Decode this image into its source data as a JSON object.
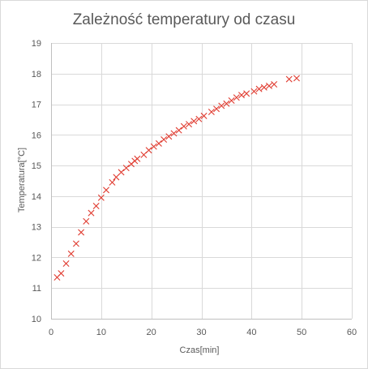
{
  "chart_data": {
    "type": "scatter",
    "title": "Zależność temperatury od czasu",
    "xlabel": "Czas[min]",
    "ylabel": "Temperatura[°C]",
    "xlim": [
      0,
      60
    ],
    "ylim": [
      10,
      19
    ],
    "xticks": [
      0,
      10,
      20,
      30,
      40,
      50,
      60
    ],
    "yticks": [
      10,
      11,
      12,
      13,
      14,
      15,
      16,
      17,
      18,
      19
    ],
    "grid": true,
    "legend": "none",
    "marker": "x",
    "marker_color": "#e03c31",
    "series": [
      {
        "x": [
          1.2,
          2.0,
          3.0,
          4.0,
          5.0,
          6.0,
          7.0,
          8.0,
          9.0,
          10.0,
          11.0,
          12.2,
          13.0,
          14.0,
          15.0,
          16.0,
          16.7,
          17.2,
          18.5,
          19.5,
          20.5,
          21.5,
          22.5,
          23.5,
          24.5,
          25.5,
          26.5,
          27.5,
          28.5,
          29.5,
          30.5,
          32.0,
          33.0,
          34.0,
          35.0,
          36.0,
          37.0,
          38.0,
          39.0,
          40.5,
          41.5,
          42.5,
          43.5,
          44.5,
          47.5,
          49.0
        ],
        "y": [
          11.35,
          11.48,
          11.8,
          12.12,
          12.45,
          12.82,
          13.18,
          13.45,
          13.68,
          13.95,
          14.2,
          14.45,
          14.62,
          14.78,
          14.92,
          15.05,
          15.15,
          15.22,
          15.35,
          15.5,
          15.62,
          15.72,
          15.85,
          15.95,
          16.05,
          16.15,
          16.28,
          16.35,
          16.45,
          16.52,
          16.62,
          16.75,
          16.85,
          16.95,
          17.02,
          17.12,
          17.22,
          17.3,
          17.35,
          17.42,
          17.5,
          17.55,
          17.6,
          17.65,
          17.82,
          17.85
        ]
      }
    ]
  },
  "colors": {
    "marker": "#e03c31",
    "gridline": "#d9d9d9",
    "text": "#595959"
  }
}
